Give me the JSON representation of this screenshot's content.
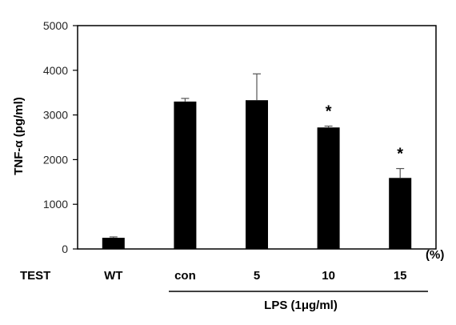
{
  "chart_data": {
    "type": "bar",
    "ylabel": "TNF-α (pg/ml)",
    "ylim": [
      0,
      5000
    ],
    "yticks": [
      0,
      1000,
      2000,
      3000,
      4000,
      5000
    ],
    "categories": [
      "WT",
      "con",
      "5",
      "10",
      "15"
    ],
    "values": [
      250,
      3300,
      3330,
      2720,
      1590
    ],
    "errors": [
      20,
      70,
      590,
      30,
      210
    ],
    "significance": [
      "",
      "",
      "",
      "*",
      "*"
    ],
    "bar_color": "#000000",
    "grid": false,
    "row_label": "TEST",
    "unit_label": "(%)",
    "group_label": "LPS (1μg/ml)"
  }
}
